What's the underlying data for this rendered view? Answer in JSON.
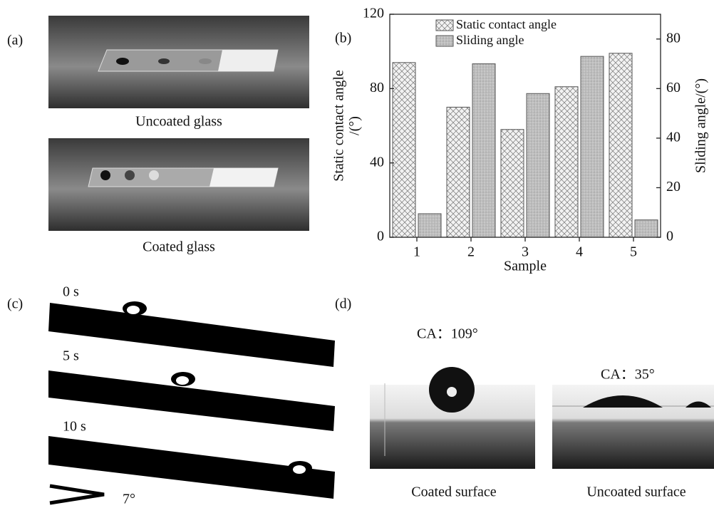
{
  "panels": {
    "a": "(a)",
    "b": "(b)",
    "c": "(c)",
    "d": "(d)"
  },
  "captions": {
    "uncoated_glass": "Uncoated glass",
    "coated_glass": "Coated glass",
    "coated_surface": "Coated surface",
    "uncoated_surface": "Uncoated surface"
  },
  "tilt": {
    "times": [
      "0 s",
      "5 s",
      "10 s"
    ],
    "angle": "7°"
  },
  "contact_angles": {
    "coated": "CA：109°",
    "uncoated": "CA：35°"
  },
  "chart_data": {
    "type": "bar",
    "categories": [
      "1",
      "2",
      "3",
      "4",
      "5"
    ],
    "xlabel": "Sample",
    "ylabel": [
      "Static contact angle",
      "/(°)"
    ],
    "y2label": "Sliding angle/(°)",
    "ylim": [
      0,
      120
    ],
    "yticks": [
      0,
      40,
      80,
      120
    ],
    "y2lim": [
      0,
      90
    ],
    "y2ticks": [
      0,
      20,
      40,
      60,
      80
    ],
    "legend": "top",
    "series": [
      {
        "name": "Static contact angle",
        "color": "#f2f2f2",
        "values": [
          94,
          70,
          58,
          81,
          99
        ]
      },
      {
        "name": "Sliding angle",
        "color": "#c8c8c8",
        "axis": "y2",
        "values": [
          9.5,
          70,
          58,
          73,
          7
        ]
      }
    ]
  }
}
